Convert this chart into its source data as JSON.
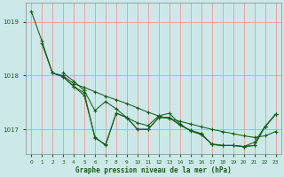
{
  "background_color": "#cce8e8",
  "plot_bg_color": "#cce8e8",
  "grid_color": "#ee9999",
  "line_color": "#1a5c1a",
  "xlabel": "Graphe pression niveau de la mer (hPa)",
  "xlim": [
    -0.5,
    23.5
  ],
  "ylim": [
    1016.55,
    1019.35
  ],
  "yticks": [
    1017,
    1018,
    1019
  ],
  "xticks": [
    0,
    1,
    2,
    3,
    4,
    5,
    6,
    7,
    8,
    9,
    10,
    11,
    12,
    13,
    14,
    15,
    16,
    17,
    18,
    19,
    20,
    21,
    22,
    23
  ],
  "series1": [
    1019.2,
    1018.65,
    1018.05,
    1018.0,
    1017.85,
    1017.78,
    1017.7,
    1017.62,
    1017.55,
    1017.48,
    1017.4,
    1017.32,
    1017.25,
    1017.2,
    1017.15,
    1017.1,
    1017.05,
    1017.0,
    1016.96,
    1016.92,
    1016.88,
    1016.85,
    1016.88,
    1016.96
  ],
  "series2": [
    null,
    null,
    1018.05,
    1017.98,
    1017.8,
    1017.63,
    1016.86,
    1016.7,
    1017.3,
    1017.22,
    1017.0,
    1017.0,
    1017.22,
    1017.22,
    1017.08,
    1016.98,
    1016.92,
    1016.72,
    1016.7,
    1016.7,
    1016.68,
    1016.7,
    1017.05,
    1017.28
  ],
  "series3": [
    null,
    null,
    null,
    1018.05,
    1017.9,
    1017.72,
    1017.35,
    1017.52,
    1017.38,
    1017.22,
    1017.12,
    1017.07,
    1017.25,
    1017.3,
    1017.1,
    1016.97,
    1016.9,
    1016.73,
    1016.7,
    1016.7,
    1016.68,
    1016.76,
    1017.05,
    1017.28
  ],
  "series4": [
    null,
    1018.6,
    1018.05,
    1017.98,
    1017.8,
    1017.68,
    1016.84,
    1016.72,
    1017.3,
    1017.22,
    1017.0,
    1017.0,
    1017.22,
    1017.22,
    1017.08,
    1016.98,
    1016.92,
    1016.72,
    1016.7,
    1016.7,
    1016.68,
    1016.7,
    1017.05,
    1017.28
  ]
}
